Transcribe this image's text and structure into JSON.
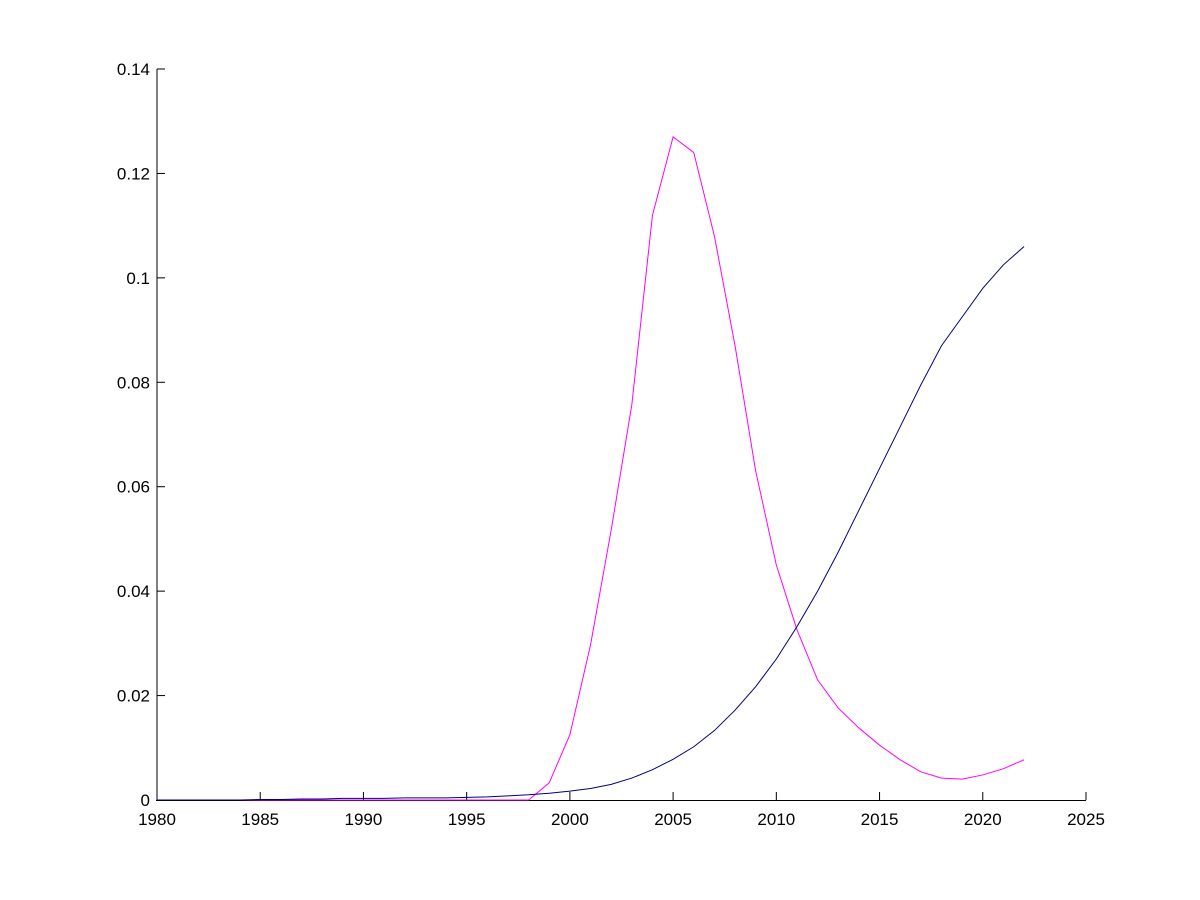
{
  "chart_data": {
    "type": "line",
    "x": [
      1980,
      1981,
      1982,
      1983,
      1984,
      1985,
      1986,
      1987,
      1988,
      1989,
      1990,
      1991,
      1992,
      1993,
      1994,
      1995,
      1996,
      1997,
      1998,
      1999,
      2000,
      2001,
      2002,
      2003,
      2004,
      2005,
      2006,
      2007,
      2008,
      2009,
      2010,
      2011,
      2012,
      2013,
      2014,
      2015,
      2016,
      2017,
      2018,
      2019,
      2020,
      2021,
      2022
    ],
    "series": [
      {
        "color": "#ff00ff",
        "values": [
          0,
          0,
          0,
          0,
          0,
          0,
          0,
          0,
          0,
          0,
          0,
          0,
          0,
          0,
          0,
          0,
          0,
          0,
          0,
          0.0033,
          0.0125,
          0.0297,
          0.0517,
          0.0757,
          0.112,
          0.127,
          0.124,
          0.108,
          0.087,
          0.063,
          0.045,
          0.0326,
          0.023,
          0.0176,
          0.0138,
          0.0105,
          0.0077,
          0.0054,
          0.0042,
          0.004,
          0.0048,
          0.006,
          0.0077
        ]
      },
      {
        "color": "#000080",
        "values": [
          0,
          0,
          0,
          0,
          0,
          0.0001,
          0.0001,
          0.0002,
          0.0002,
          0.0003,
          0.0003,
          0.0003,
          0.0004,
          0.0004,
          0.0004,
          0.0005,
          0.0006,
          0.0008,
          0.001,
          0.0013,
          0.0017,
          0.0022,
          0.003,
          0.0042,
          0.0058,
          0.0078,
          0.0102,
          0.0133,
          0.0172,
          0.0217,
          0.027,
          0.0332,
          0.04,
          0.0475,
          0.0555,
          0.0635,
          0.0715,
          0.0795,
          0.087,
          0.0925,
          0.098,
          0.1025,
          0.106
        ]
      }
    ],
    "xlim": [
      1980,
      2025
    ],
    "xticks": [
      1980,
      1985,
      1990,
      1995,
      2000,
      2005,
      2010,
      2015,
      2020,
      2025
    ],
    "ylim": [
      0,
      0.14
    ],
    "yticks": [
      0,
      0.02,
      0.04,
      0.06,
      0.08,
      0.1,
      0.12,
      0.14
    ]
  }
}
